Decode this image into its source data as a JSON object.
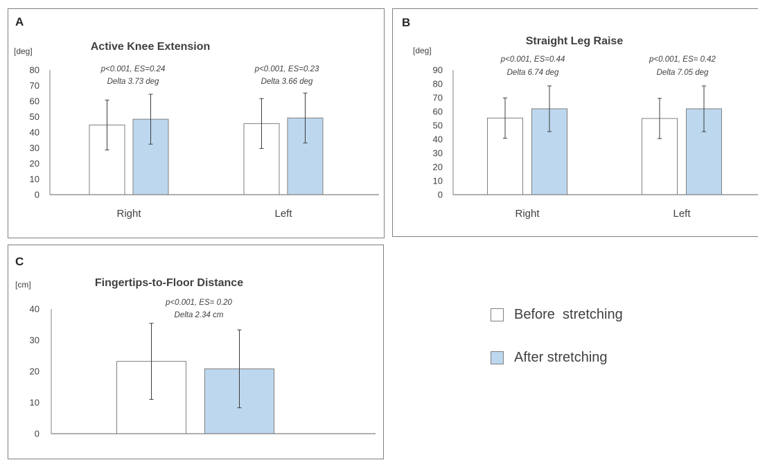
{
  "colors": {
    "before": "#ffffff",
    "after": "#bdd7ee",
    "edge": "#7f7f7f",
    "axis": "#7f7f7f",
    "error": "#3c3c3c"
  },
  "legend": [
    {
      "label": "Before  stretching",
      "color": "#ffffff"
    },
    {
      "label": "After stretching",
      "color": "#bdd7ee"
    }
  ],
  "chart_data": [
    {
      "type": "bar",
      "panel": "A",
      "title": "Active Knee Extension",
      "ylabel": "[deg]",
      "ylim": [
        0,
        80
      ],
      "yticks": [
        "0",
        "10",
        "20",
        "30",
        "40",
        "50",
        "60",
        "70",
        "80"
      ],
      "categories": [
        "Right",
        "Left"
      ],
      "series": [
        {
          "name": "Before  stretching",
          "values": [
            44.7,
            45.6
          ],
          "errors": [
            16,
            16
          ]
        },
        {
          "name": "After stretching",
          "values": [
            48.4,
            49.2
          ],
          "errors": [
            16,
            16
          ]
        }
      ],
      "annotations": [
        {
          "line1": "p<0.001, ES=0.24",
          "line2": "Delta 3.73 deg"
        },
        {
          "line1": "p<0.001, ES=0.23",
          "line2": "Delta 3.66 deg"
        }
      ],
      "grid": false
    },
    {
      "type": "bar",
      "panel": "B",
      "title": "Straight Leg Raise",
      "ylabel": "[deg]",
      "ylim": [
        0,
        90
      ],
      "yticks": [
        "0",
        "10",
        "20",
        "30",
        "40",
        "50",
        "60",
        "70",
        "80",
        "90"
      ],
      "categories": [
        "Right",
        "Left"
      ],
      "series": [
        {
          "name": "Before  stretching",
          "values": [
            55.3,
            55.0
          ],
          "errors": [
            14.5,
            14.5
          ]
        },
        {
          "name": "After stretching",
          "values": [
            62.0,
            62.0
          ],
          "errors": [
            16.5,
            16.5
          ]
        }
      ],
      "annotations": [
        {
          "line1": "p<0.001, ES=0.44",
          "line2": "Delta 6.74 deg"
        },
        {
          "line1": "p<0.001, ES= 0.42",
          "line2": "Delta 7.05 deg"
        }
      ],
      "grid": false
    },
    {
      "type": "bar",
      "panel": "C",
      "title": "Fingertips-to-Floor Distance",
      "ylabel": "[cm]",
      "ylim": [
        0,
        40
      ],
      "yticks": [
        "0",
        "10",
        "20",
        "30",
        "40"
      ],
      "categories": [
        ""
      ],
      "series": [
        {
          "name": "Before  stretching",
          "values": [
            23.2
          ],
          "errors": [
            12.2
          ]
        },
        {
          "name": "After stretching",
          "values": [
            20.8
          ],
          "errors": [
            12.5
          ]
        }
      ],
      "annotations": [
        {
          "line1": "p<0.001, ES= 0.20",
          "line2": "Delta 2.34 cm"
        }
      ],
      "grid": false
    }
  ]
}
